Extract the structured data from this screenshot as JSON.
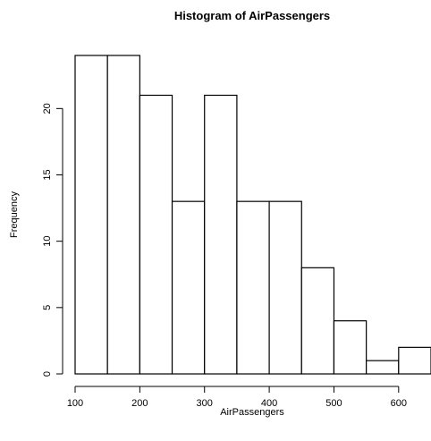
{
  "chart_data": {
    "type": "bar",
    "histogram": true,
    "title": "Histogram of AirPassengers",
    "xlabel": "AirPassengers",
    "ylabel": "Frequency",
    "bin_edges": [
      100,
      150,
      200,
      250,
      300,
      350,
      400,
      450,
      500,
      550,
      600,
      650
    ],
    "categories": [
      "100-150",
      "150-200",
      "200-250",
      "250-300",
      "300-350",
      "350-400",
      "400-450",
      "450-500",
      "500-550",
      "550-600",
      "600-650"
    ],
    "values": [
      24,
      24,
      21,
      13,
      21,
      13,
      13,
      8,
      4,
      1,
      2
    ],
    "xticks": [
      100,
      200,
      300,
      400,
      500,
      600
    ],
    "yticks": [
      0,
      5,
      10,
      15,
      20
    ],
    "xlim": [
      100,
      650
    ],
    "ylim": [
      0,
      24
    ],
    "grid": false,
    "bar_fill": "#ffffff",
    "bar_edge": "#000000"
  }
}
